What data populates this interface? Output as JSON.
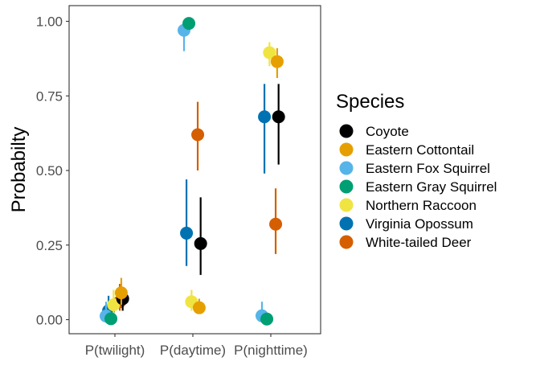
{
  "chart_data": {
    "type": "scatter",
    "title": "",
    "xlabel": "",
    "ylabel": "Probabilty",
    "categories": [
      "P(twilight)",
      "P(daytime)",
      "P(nighttime)"
    ],
    "yticks": [
      "0.00",
      "0.25",
      "0.50",
      "0.75",
      "1.00"
    ],
    "ylim": [
      -0.05,
      1.05
    ],
    "grid": false,
    "legend_title": "Species",
    "legend_position": "right",
    "series": [
      {
        "name": "Coyote",
        "color": "#000000",
        "values": [
          0.07,
          0.255,
          0.68
        ],
        "lower": [
          0.03,
          0.15,
          0.52
        ],
        "upper": [
          0.1,
          0.41,
          0.79
        ]
      },
      {
        "name": "Eastern Cottontail",
        "color": "#E69F00",
        "values": [
          0.09,
          0.04,
          0.865
        ],
        "lower": [
          0.05,
          0.02,
          0.81
        ],
        "upper": [
          0.14,
          0.07,
          0.91
        ]
      },
      {
        "name": "Eastern Fox Squirrel",
        "color": "#56B4E9",
        "values": [
          0.012,
          0.97,
          0.013
        ],
        "lower": [
          0.0,
          0.9,
          0.0
        ],
        "upper": [
          0.06,
          0.99,
          0.06
        ]
      },
      {
        "name": "Eastern Gray Squirrel",
        "color": "#009E73",
        "values": [
          0.003,
          0.993,
          0.002
        ],
        "lower": [
          0.0,
          0.98,
          0.0
        ],
        "upper": [
          0.01,
          1.0,
          0.01
        ]
      },
      {
        "name": "Northern Raccoon",
        "color": "#F0E442",
        "values": [
          0.05,
          0.06,
          0.895
        ],
        "lower": [
          0.01,
          0.03,
          0.85
        ],
        "upper": [
          0.1,
          0.1,
          0.93
        ]
      },
      {
        "name": "Virginia Opossum",
        "color": "#0072B2",
        "values": [
          0.03,
          0.29,
          0.68
        ],
        "lower": [
          0.0,
          0.18,
          0.49
        ],
        "upper": [
          0.08,
          0.47,
          0.79
        ]
      },
      {
        "name": "White-tailed Deer",
        "color": "#D55E00",
        "values": [
          0.06,
          0.62,
          0.32
        ],
        "lower": [
          0.03,
          0.5,
          0.22
        ],
        "upper": [
          0.12,
          0.73,
          0.44
        ]
      }
    ]
  }
}
